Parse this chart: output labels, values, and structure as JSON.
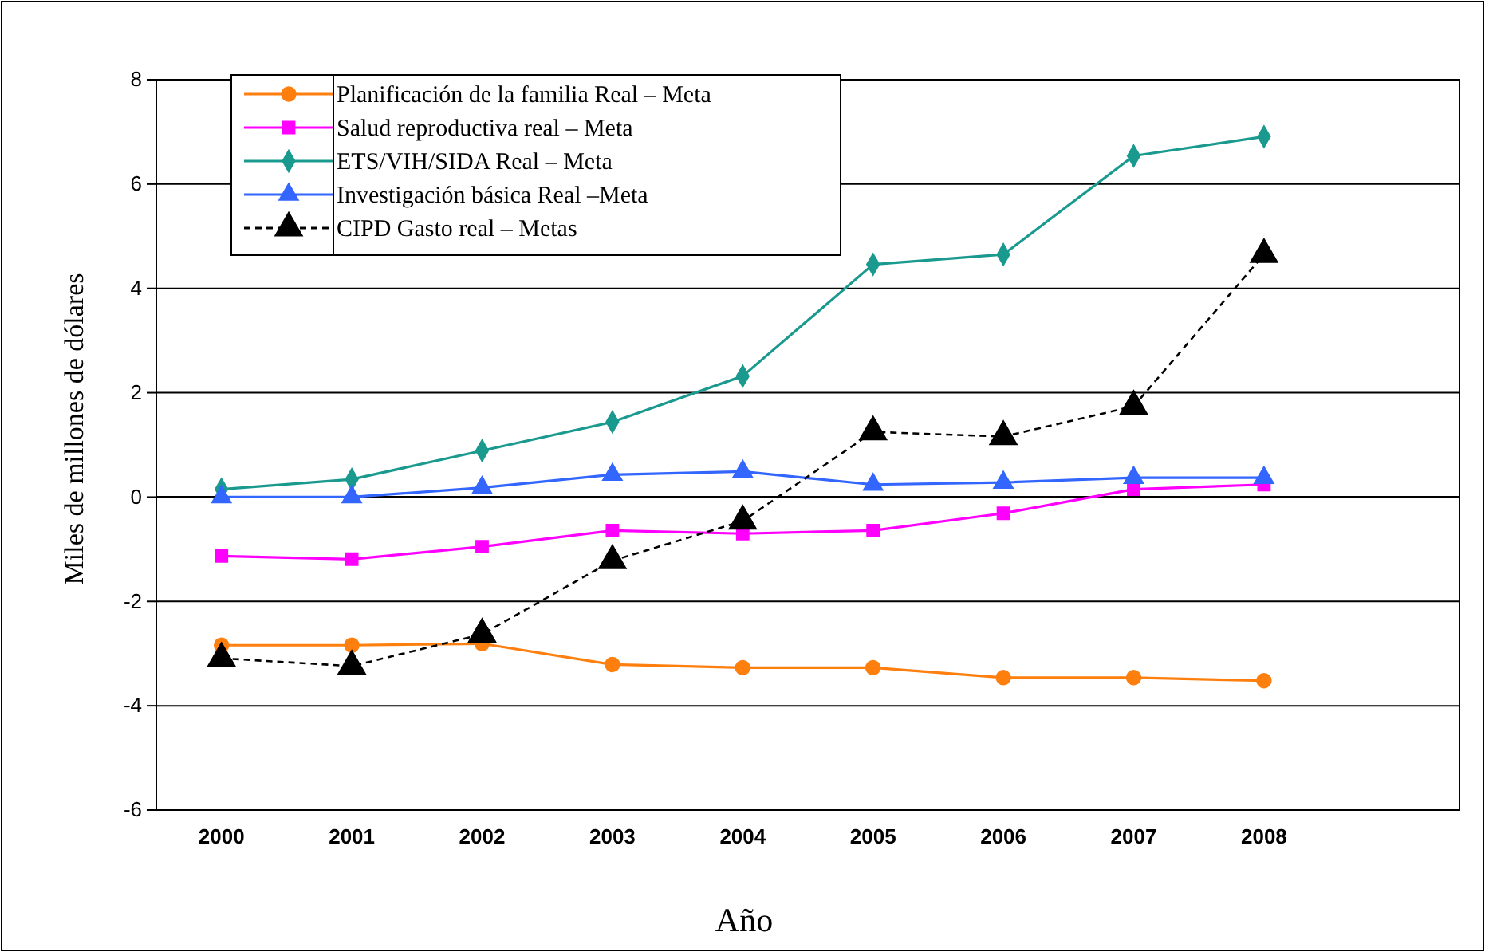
{
  "chart_data": {
    "type": "line",
    "xlabel": "Año",
    "ylabel": "Miles de millones de dólares",
    "categories": [
      "2000",
      "2001",
      "2002",
      "2003",
      "2004",
      "2005",
      "2006",
      "2007",
      "2008",
      null
    ],
    "ylim": [
      -6,
      8
    ],
    "yticks": [
      -6,
      -4,
      -2,
      0,
      2,
      4,
      6,
      8
    ],
    "grid": "y",
    "legend": "top left",
    "series": [
      {
        "name": "Planificación de la familia  Real – Meta",
        "color": "#ff7f0e",
        "marker": "circle",
        "line_style": "solid",
        "values": [
          -2.84,
          -2.84,
          -2.81,
          -3.21,
          -3.27,
          -3.27,
          -3.46,
          -3.46,
          -3.52,
          null
        ]
      },
      {
        "name": "Salud reproductiva  real – Meta",
        "color": "#ff00ff",
        "marker": "square",
        "line_style": "solid",
        "values": [
          -1.13,
          -1.19,
          -0.95,
          -0.64,
          -0.7,
          -0.64,
          -0.31,
          0.15,
          0.24,
          null
        ]
      },
      {
        "name": "ETS/VIH/SIDA  Real – Meta",
        "color": "#1a9a8e",
        "marker": "diamond",
        "line_style": "solid",
        "values": [
          0.15,
          0.34,
          0.89,
          1.44,
          2.32,
          4.46,
          4.65,
          6.54,
          6.91,
          null
        ]
      },
      {
        "name": "Investigación básica  Real –Meta",
        "color": "#3366ff",
        "marker": "triangle",
        "line_style": "solid",
        "values": [
          0,
          0,
          0.18,
          0.43,
          0.49,
          0.24,
          0.28,
          0.37,
          0.37,
          null
        ]
      },
      {
        "name": "CIPD Gasto real – Metas",
        "color": "#000000",
        "marker": "triangle",
        "line_style": "dashed",
        "values": [
          -3.09,
          -3.24,
          -2.63,
          -1.22,
          -0.46,
          1.25,
          1.16,
          1.74,
          4.65,
          null
        ]
      }
    ]
  }
}
